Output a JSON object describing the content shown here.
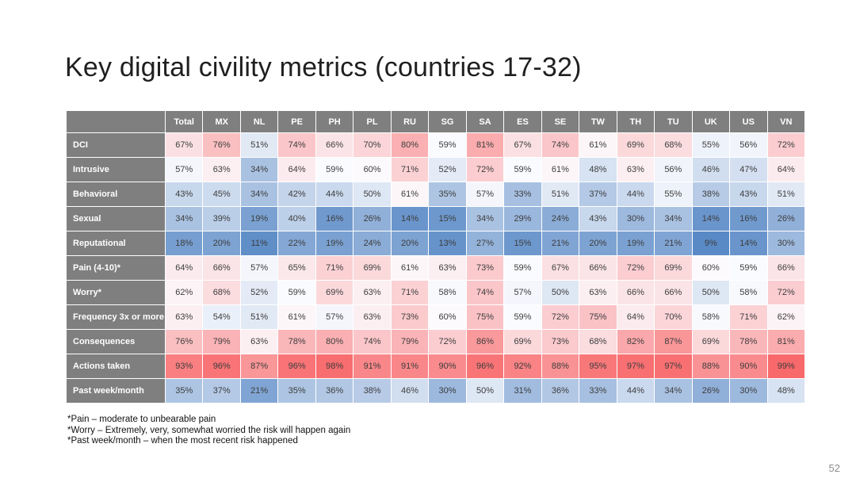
{
  "slide": {
    "title": "Key digital civility metrics (countries 17-32)",
    "page_number": "52"
  },
  "footnotes": [
    "*Pain – moderate to unbearable pain",
    "*Worry – Extremely, very, somewhat worried the risk will happen again",
    "*Past week/month – when the most recent risk happened"
  ],
  "chart_data": {
    "type": "heatmap",
    "title": "Key digital civility metrics (countries 17-32)",
    "unit": "%",
    "columns": [
      "Total",
      "MX",
      "NL",
      "PE",
      "PH",
      "PL",
      "RU",
      "SG",
      "SA",
      "ES",
      "SE",
      "TW",
      "TH",
      "TU",
      "UK",
      "US",
      "VN"
    ],
    "rows": [
      {
        "label": "DCI",
        "values": [
          67,
          76,
          51,
          74,
          66,
          70,
          80,
          59,
          81,
          67,
          74,
          61,
          69,
          68,
          55,
          56,
          72
        ]
      },
      {
        "label": "Intrusive",
        "values": [
          57,
          63,
          34,
          64,
          59,
          60,
          71,
          52,
          72,
          59,
          61,
          48,
          63,
          56,
          46,
          47,
          64
        ]
      },
      {
        "label": "Behavioral",
        "values": [
          43,
          45,
          34,
          42,
          44,
          50,
          61,
          35,
          57,
          33,
          51,
          37,
          44,
          55,
          38,
          43,
          51
        ]
      },
      {
        "label": "Sexual",
        "values": [
          34,
          39,
          19,
          40,
          16,
          26,
          14,
          15,
          34,
          29,
          24,
          43,
          30,
          34,
          14,
          16,
          26
        ]
      },
      {
        "label": "Reputational",
        "values": [
          18,
          20,
          11,
          22,
          19,
          24,
          20,
          13,
          27,
          15,
          21,
          20,
          19,
          21,
          9,
          14,
          30
        ]
      },
      {
        "label": "Pain (4-10)*",
        "values": [
          64,
          66,
          57,
          65,
          71,
          69,
          61,
          63,
          73,
          59,
          67,
          66,
          72,
          69,
          60,
          59,
          66
        ]
      },
      {
        "label": "Worry*",
        "values": [
          62,
          68,
          52,
          59,
          69,
          63,
          71,
          58,
          74,
          57,
          50,
          63,
          66,
          66,
          50,
          58,
          72
        ]
      },
      {
        "label": "Frequency 3x or more",
        "values": [
          63,
          54,
          51,
          61,
          57,
          63,
          73,
          60,
          75,
          59,
          72,
          75,
          64,
          70,
          58,
          71,
          62
        ]
      },
      {
        "label": "Consequences",
        "values": [
          76,
          79,
          63,
          78,
          80,
          74,
          79,
          72,
          86,
          69,
          73,
          68,
          82,
          87,
          69,
          78,
          81
        ]
      },
      {
        "label": "Actions taken",
        "values": [
          93,
          96,
          87,
          96,
          98,
          91,
          91,
          90,
          96,
          92,
          88,
          95,
          97,
          97,
          88,
          90,
          99
        ]
      },
      {
        "label": "Past week/month",
        "values": [
          35,
          37,
          21,
          35,
          36,
          38,
          46,
          30,
          50,
          31,
          36,
          33,
          44,
          34,
          26,
          30,
          48
        ]
      }
    ],
    "color_scale": {
      "min": 9,
      "mid": 59.5,
      "max": 99,
      "min_color": "#5A8AC6",
      "mid_color": "#FCFCFF",
      "max_color": "#F8696B"
    },
    "header_bg": "#7F7F7F",
    "legend_position": "none",
    "grid": false
  }
}
